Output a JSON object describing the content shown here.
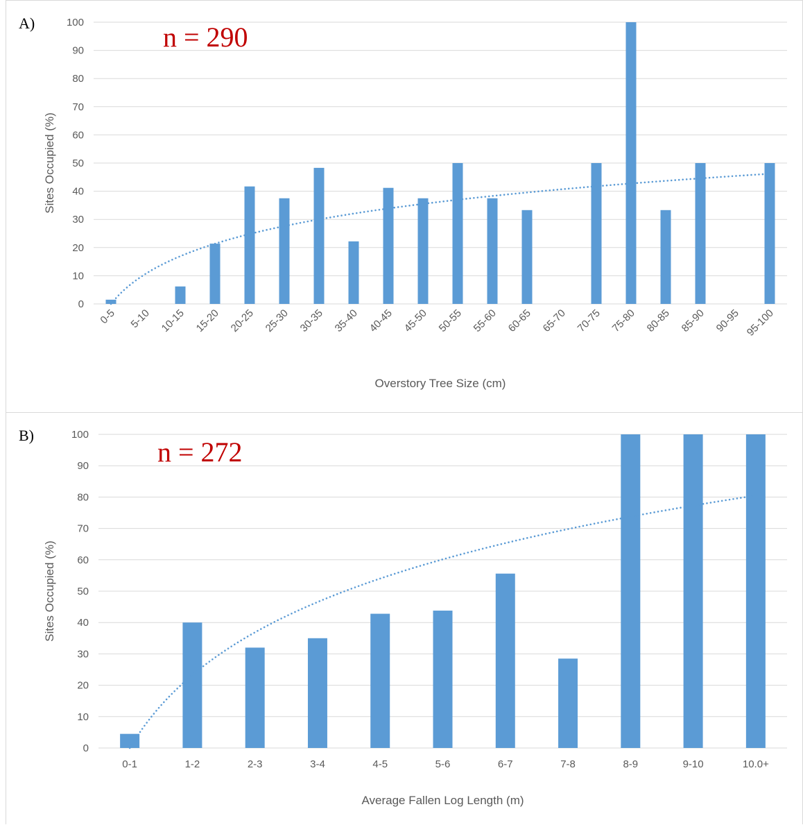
{
  "chart_data": [
    {
      "type": "bar",
      "panel_label": "A)",
      "annotation": "n = 290",
      "xlabel": "Overstory Tree Size (cm)",
      "ylabel": "Sites Occupied (%)",
      "ylim": [
        0,
        100
      ],
      "yticks": [
        0,
        10,
        20,
        30,
        40,
        50,
        60,
        70,
        80,
        90,
        100
      ],
      "grid": true,
      "trendline": "logarithmic, dotted",
      "categories": [
        "0-5",
        "5-10",
        "10-15",
        "15-20",
        "20-25",
        "25-30",
        "30-35",
        "35-40",
        "40-45",
        "45-50",
        "50-55",
        "55-60",
        "60-65",
        "65-70",
        "70-75",
        "75-80",
        "80-85",
        "85-90",
        "90-95",
        "95-100"
      ],
      "values": [
        1.5,
        0,
        6.2,
        21.4,
        41.7,
        37.5,
        48.3,
        22.2,
        41.2,
        37.5,
        50,
        37.5,
        33.3,
        0,
        50,
        100,
        33.3,
        50,
        0,
        50
      ],
      "trend_start": 0,
      "trend_end": 46.2,
      "bar_color": "#5b9bd5"
    },
    {
      "type": "bar",
      "panel_label": "B)",
      "annotation": "n = 272",
      "xlabel": "Average Fallen Log Length (m)",
      "ylabel": "Sites Occupied (%)",
      "ylim": [
        0,
        100
      ],
      "yticks": [
        0,
        10,
        20,
        30,
        40,
        50,
        60,
        70,
        80,
        90,
        100
      ],
      "grid": true,
      "trendline": "logarithmic, dotted",
      "categories": [
        "0-1",
        "1-2",
        "2-3",
        "3-4",
        "4-5",
        "5-6",
        "6-7",
        "7-8",
        "8-9",
        "9-10",
        "10.0+"
      ],
      "values": [
        4.5,
        40,
        32,
        35,
        42.8,
        43.8,
        55.6,
        28.5,
        100,
        100,
        100
      ],
      "trend_start": 0,
      "trend_end": 80.5,
      "bar_color": "#5b9bd5"
    }
  ]
}
